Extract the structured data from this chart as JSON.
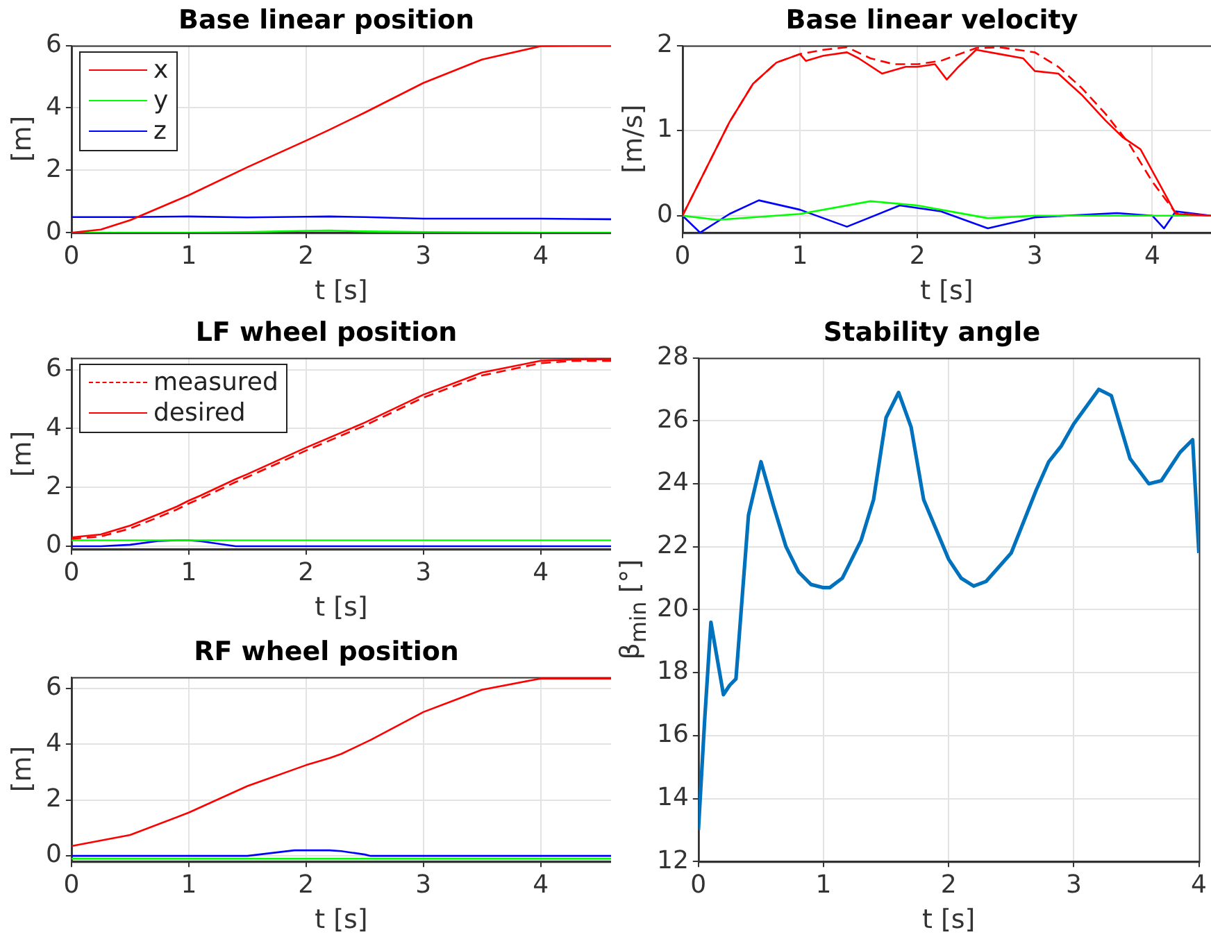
{
  "chart_data": [
    {
      "type": "line",
      "title": "Base linear position",
      "xlabel": "t [s]",
      "ylabel": "[m]",
      "xlim": [
        0,
        4.6
      ],
      "xticks": [
        0,
        1,
        2,
        3,
        4
      ],
      "ylim": [
        0,
        6
      ],
      "yticks": [
        0,
        2,
        4,
        6
      ],
      "grid": true,
      "legend": "top left",
      "x": [
        0,
        0.25,
        0.5,
        0.75,
        1,
        1.5,
        2,
        2.2,
        2.5,
        3,
        3.5,
        4,
        4.3,
        4.6
      ],
      "series": [
        {
          "name": "x",
          "color": "#ff0000",
          "values": [
            0,
            0.1,
            0.4,
            0.8,
            1.2,
            2.1,
            2.95,
            3.3,
            3.85,
            4.8,
            5.55,
            5.98,
            6,
            6
          ]
        },
        {
          "name": "y",
          "color": "#00ff00",
          "values": [
            0,
            0,
            0,
            0,
            0,
            0.02,
            0.06,
            0.07,
            0.04,
            0.02,
            0.01,
            0,
            0,
            0
          ]
        },
        {
          "name": "z",
          "color": "#0000ff",
          "values": [
            0.5,
            0.5,
            0.5,
            0.51,
            0.52,
            0.49,
            0.51,
            0.52,
            0.5,
            0.45,
            0.45,
            0.45,
            0.44,
            0.43
          ]
        }
      ]
    },
    {
      "type": "line",
      "title": "Base linear velocity",
      "xlabel": "t [s]",
      "ylabel": "[m/s]",
      "xlim": [
        0,
        4.5
      ],
      "xticks": [
        0,
        1,
        2,
        3,
        4
      ],
      "ylim": [
        -0.2,
        2
      ],
      "yticks": [
        0,
        1,
        2
      ],
      "grid": true,
      "series": [
        {
          "color": "#ff0000",
          "line_style": "dashed",
          "x": [
            0,
            0.2,
            0.4,
            0.6,
            0.8,
            1,
            1.2,
            1.4,
            1.6,
            1.8,
            2,
            2.2,
            2.5,
            2.7,
            3,
            3.2,
            3.4,
            3.6,
            3.8,
            4,
            4.2,
            4.5
          ],
          "values": [
            0,
            0.55,
            1.1,
            1.55,
            1.8,
            1.9,
            1.95,
            1.98,
            1.85,
            1.78,
            1.78,
            1.82,
            1.97,
            1.98,
            1.92,
            1.75,
            1.5,
            1.2,
            0.85,
            0.4,
            0.03,
            0
          ]
        },
        {
          "color": "#ff0000",
          "x": [
            0,
            0.2,
            0.4,
            0.6,
            0.8,
            1,
            1.05,
            1.2,
            1.4,
            1.5,
            1.7,
            1.9,
            2,
            2.15,
            2.25,
            2.35,
            2.5,
            2.7,
            2.9,
            3,
            3.2,
            3.4,
            3.6,
            3.75,
            3.9,
            4.05,
            4.2,
            4.5
          ],
          "values": [
            0,
            0.55,
            1.1,
            1.55,
            1.8,
            1.9,
            1.82,
            1.88,
            1.92,
            1.85,
            1.67,
            1.75,
            1.75,
            1.78,
            1.6,
            1.75,
            1.95,
            1.9,
            1.85,
            1.7,
            1.67,
            1.42,
            1.12,
            0.92,
            0.78,
            0.4,
            0.02,
            0
          ]
        },
        {
          "color": "#00ff00",
          "x": [
            0,
            0.3,
            1,
            1.6,
            2,
            2.6,
            3,
            4.5
          ],
          "values": [
            0,
            -0.05,
            0.02,
            0.17,
            0.12,
            -0.03,
            0,
            0
          ]
        },
        {
          "color": "#0000ff",
          "x": [
            0,
            0.15,
            0.4,
            0.65,
            1,
            1.4,
            1.85,
            2.2,
            2.6,
            3,
            3.7,
            4,
            4.1,
            4.2,
            4.5
          ],
          "values": [
            0,
            -0.2,
            0.02,
            0.18,
            0.07,
            -0.13,
            0.12,
            0.05,
            -0.15,
            -0.02,
            0.03,
            0,
            -0.15,
            0.05,
            0
          ]
        }
      ]
    },
    {
      "type": "line",
      "title": "LF wheel position",
      "xlabel": "t [s]",
      "ylabel": "[m]",
      "xlim": [
        0,
        4.6
      ],
      "xticks": [
        0,
        1,
        2,
        3,
        4
      ],
      "ylim": [
        -0.1,
        6.4
      ],
      "yticks": [
        0,
        2,
        4,
        6
      ],
      "grid": true,
      "legend": "top left",
      "x": [
        0,
        0.25,
        0.5,
        0.75,
        0.9,
        1,
        1.1,
        1.4,
        1.5,
        2,
        2.5,
        3,
        3.5,
        4,
        4.3,
        4.6
      ],
      "series": [
        {
          "name": "measured",
          "color": "#ff0000",
          "line_style": "dashed",
          "values": [
            0.25,
            0.33,
            0.6,
            1.0,
            1.25,
            1.45,
            1.62,
            2.18,
            2.35,
            3.25,
            4.1,
            5.05,
            5.8,
            6.22,
            6.3,
            6.3
          ]
        },
        {
          "name": "desired",
          "color": "#ff0000",
          "values": [
            0.3,
            0.4,
            0.7,
            1.1,
            1.35,
            1.55,
            1.72,
            2.28,
            2.45,
            3.35,
            4.2,
            5.15,
            5.9,
            6.3,
            6.35,
            6.35
          ]
        },
        {
          "color": "#00ff00",
          "values": [
            0.2,
            0.2,
            0.2,
            0.2,
            0.2,
            0.2,
            0.2,
            0.2,
            0.2,
            0.2,
            0.2,
            0.2,
            0.2,
            0.2,
            0.2,
            0.2
          ]
        },
        {
          "color": "#0000ff",
          "values": [
            0,
            0,
            0.05,
            0.18,
            0.2,
            0.2,
            0.17,
            0,
            0,
            0,
            0,
            0,
            0,
            0,
            0,
            0
          ]
        }
      ]
    },
    {
      "type": "line",
      "title": "RF wheel position",
      "xlabel": "t [s]",
      "ylabel": "[m]",
      "xlim": [
        0,
        4.6
      ],
      "xticks": [
        0,
        1,
        2,
        3,
        4
      ],
      "ylim": [
        -0.2,
        6.4
      ],
      "yticks": [
        0,
        2,
        4,
        6
      ],
      "grid": true,
      "x": [
        0,
        0.5,
        1,
        1.5,
        1.7,
        1.9,
        2,
        2.2,
        2.3,
        2.5,
        2.55,
        3,
        3.5,
        4,
        4.6
      ],
      "series": [
        {
          "color": "#ff0000",
          "values": [
            0.35,
            0.75,
            1.55,
            2.5,
            2.8,
            3.1,
            3.25,
            3.5,
            3.65,
            4.05,
            4.15,
            5.15,
            5.95,
            6.35,
            6.35
          ]
        },
        {
          "color": "#00ff00",
          "values": [
            -0.1,
            -0.1,
            -0.1,
            -0.1,
            -0.1,
            -0.1,
            -0.1,
            -0.1,
            -0.1,
            -0.1,
            -0.1,
            -0.1,
            -0.1,
            -0.1,
            -0.1
          ]
        },
        {
          "color": "#0000ff",
          "values": [
            0,
            0,
            0,
            0,
            0.1,
            0.2,
            0.2,
            0.2,
            0.17,
            0.05,
            0,
            0,
            0,
            0,
            0
          ]
        }
      ]
    },
    {
      "type": "line",
      "title": "Stability angle",
      "xlabel": "t [s]",
      "ylabel": "β$_{min}$ [°]",
      "xlim": [
        0,
        4
      ],
      "xticks": [
        0,
        1,
        2,
        3,
        4
      ],
      "ylim": [
        12,
        28
      ],
      "yticks": [
        12,
        14,
        16,
        18,
        20,
        22,
        24,
        26,
        28
      ],
      "grid": true,
      "series": [
        {
          "color": "#0072bd",
          "x": [
            0,
            0.05,
            0.1,
            0.2,
            0.25,
            0.3,
            0.4,
            0.5,
            0.6,
            0.7,
            0.8,
            0.9,
            1,
            1.05,
            1.15,
            1.3,
            1.4,
            1.5,
            1.6,
            1.7,
            1.8,
            2,
            2.1,
            2.2,
            2.3,
            2.5,
            2.7,
            2.8,
            2.9,
            3,
            3.2,
            3.3,
            3.45,
            3.6,
            3.7,
            3.85,
            3.95,
            4
          ],
          "values": [
            13,
            16.5,
            19.6,
            17.3,
            17.6,
            17.8,
            23,
            24.7,
            23.3,
            22,
            21.2,
            20.8,
            20.7,
            20.7,
            21,
            22.2,
            23.5,
            26.1,
            26.9,
            25.8,
            23.5,
            21.6,
            21,
            20.75,
            20.9,
            21.8,
            23.8,
            24.7,
            25.2,
            25.9,
            27,
            26.8,
            24.8,
            24,
            24.1,
            25,
            25.4,
            21.8
          ]
        }
      ]
    }
  ]
}
